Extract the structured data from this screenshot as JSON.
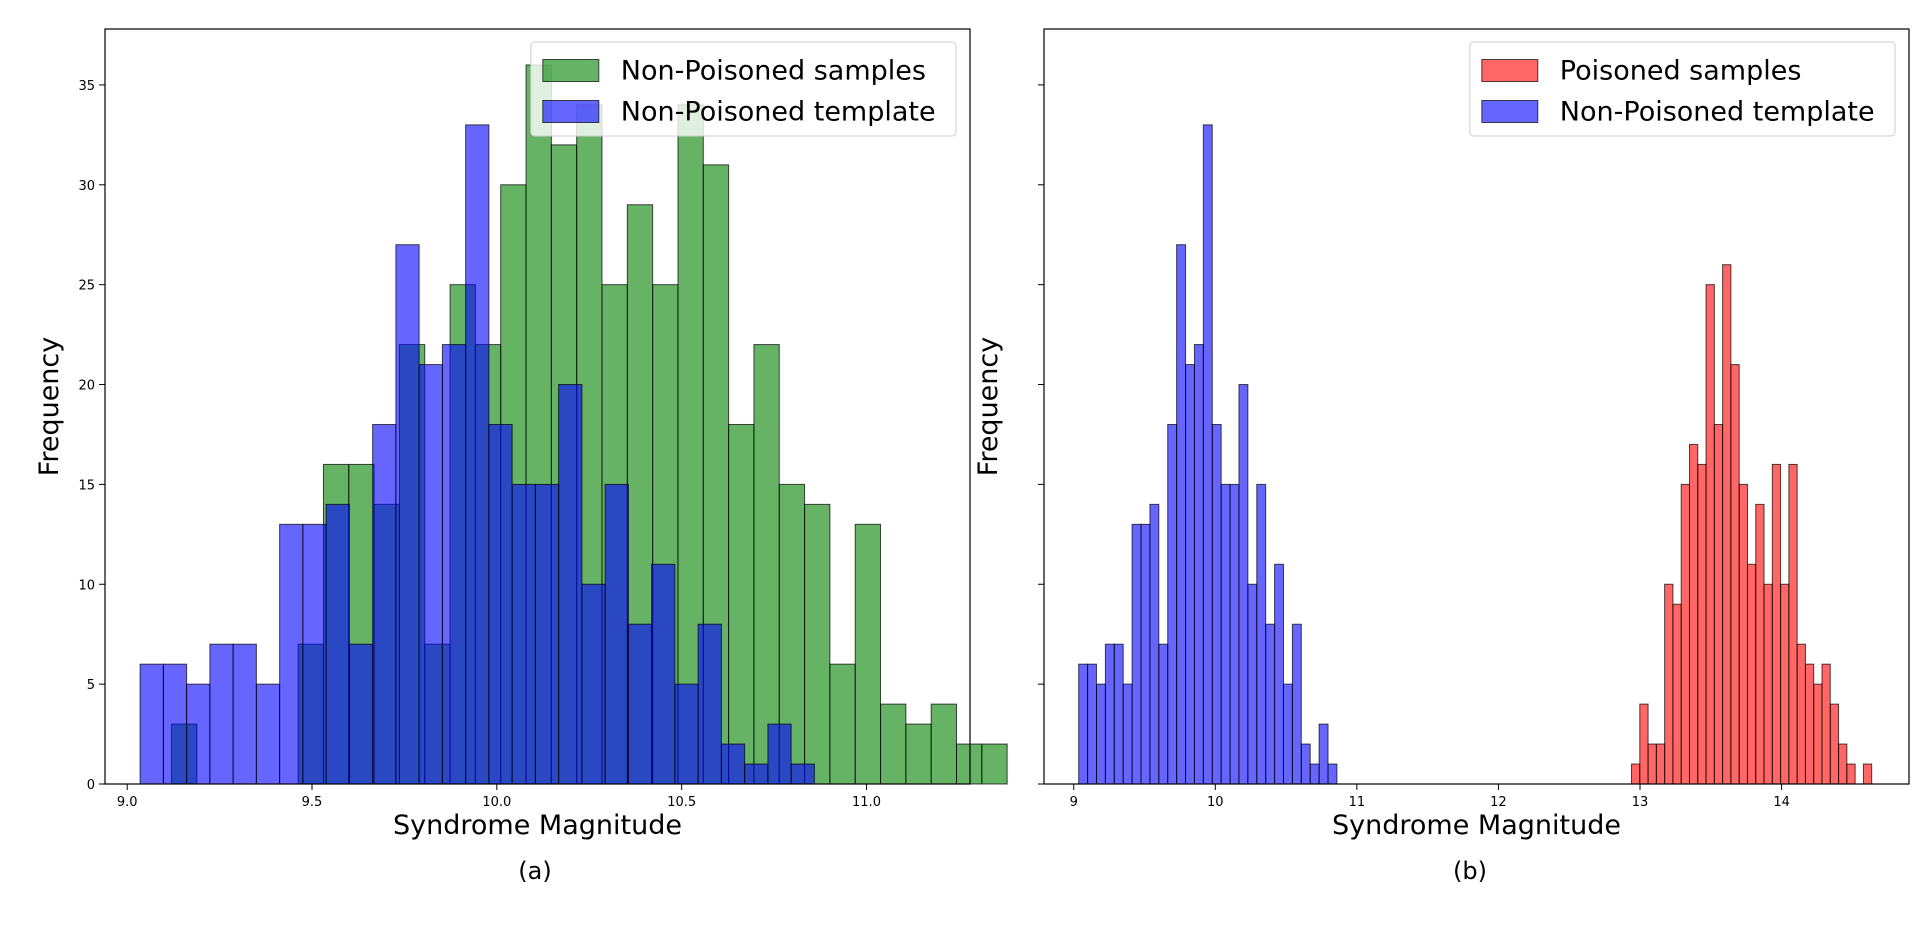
{
  "chart_data": [
    {
      "type": "histogram",
      "caption": "(a)",
      "xlabel": "Syndrome Magnitude",
      "ylabel": "Frequency",
      "xlim": [
        8.94,
        11.28
      ],
      "ylim": [
        0,
        37.8
      ],
      "xticks": [
        9.0,
        9.5,
        10.0,
        10.5,
        11.0
      ],
      "xtick_labels": [
        "9.0",
        "9.5",
        "10.0",
        "10.5",
        "11.0"
      ],
      "yticks": [
        0,
        5,
        10,
        15,
        20,
        25,
        30,
        35
      ],
      "ytick_labels": [
        "0",
        "5",
        "10",
        "15",
        "20",
        "25",
        "30",
        "35"
      ],
      "legend_position": "top-right",
      "series": [
        {
          "name": "Non-Poisoned samples",
          "color": "#008000",
          "alpha": 0.6,
          "bin_start": 9.12,
          "bin_width": 0.0685,
          "values": [
            3,
            0,
            0,
            0,
            0,
            7,
            16,
            16,
            14,
            22,
            7,
            25,
            22,
            30,
            36,
            32,
            34,
            25,
            29,
            25,
            34,
            31,
            18,
            22,
            15,
            14,
            6,
            13,
            4,
            3,
            4,
            2,
            2
          ]
        },
        {
          "name": "Non-Poisoned template",
          "color": "#0000ff",
          "alpha": 0.6,
          "bin_start": 9.035,
          "bin_width": 0.0629,
          "values": [
            6,
            6,
            5,
            7,
            7,
            5,
            13,
            13,
            14,
            7,
            18,
            27,
            21,
            22,
            33,
            18,
            15,
            15,
            20,
            10,
            15,
            8,
            11,
            5,
            8,
            2,
            1,
            3,
            1
          ]
        }
      ]
    },
    {
      "type": "histogram",
      "caption": "(b)",
      "xlabel": "Syndrome Magnitude",
      "ylabel": "Frequency",
      "xlim": [
        8.79,
        14.9
      ],
      "ylim": [
        0,
        37.8
      ],
      "xticks": [
        9,
        10,
        11,
        12,
        13,
        14
      ],
      "xtick_labels": [
        "9",
        "10",
        "11",
        "12",
        "13",
        "14"
      ],
      "yticks": [
        0,
        5,
        10,
        15,
        20,
        25,
        30,
        35
      ],
      "ytick_labels": [],
      "legend_position": "top-right",
      "series": [
        {
          "name": "Poisoned samples",
          "color": "#ff0000",
          "alpha": 0.6,
          "bin_start": 12.94,
          "bin_width": 0.0585,
          "values": [
            1,
            4,
            2,
            2,
            10,
            9,
            15,
            17,
            16,
            25,
            18,
            26,
            21,
            15,
            11,
            14,
            10,
            16,
            10,
            16,
            7,
            6,
            5,
            6,
            4,
            2,
            1,
            0,
            1
          ]
        },
        {
          "name": "Non-Poisoned template",
          "color": "#0000ff",
          "alpha": 0.6,
          "bin_start": 9.035,
          "bin_width": 0.0629,
          "values": [
            6,
            6,
            5,
            7,
            7,
            5,
            13,
            13,
            14,
            7,
            18,
            27,
            21,
            22,
            33,
            18,
            15,
            15,
            20,
            10,
            15,
            8,
            11,
            5,
            8,
            2,
            1,
            3,
            1
          ]
        }
      ]
    }
  ]
}
